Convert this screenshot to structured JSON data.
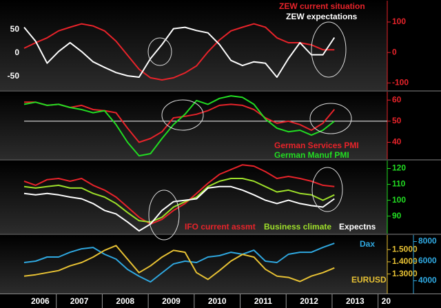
{
  "chart_data": [
    {
      "type": "line",
      "xlim": [
        2006.3,
        2014.2
      ],
      "ylim": [
        -80,
        112
      ],
      "yticks": [
        50,
        0,
        -50
      ],
      "y_axis_side": "left",
      "y_color": "#ffffff",
      "y2lim": [
        -124,
        170
      ],
      "y2ticks": [
        100,
        0,
        -100
      ],
      "y2_color": "#e8232a",
      "x": [
        2006.3,
        2006.55,
        2006.8,
        2007.05,
        2007.3,
        2007.55,
        2007.8,
        2008.05,
        2008.3,
        2008.55,
        2008.8,
        2009.05,
        2009.3,
        2009.55,
        2009.8,
        2010.05,
        2010.3,
        2010.55,
        2010.8,
        2011.05,
        2011.3,
        2011.55,
        2011.8,
        2012.05,
        2012.3,
        2012.55,
        2012.8,
        2013.05
      ],
      "series": [
        {
          "name": "ZEW current situation",
          "color": "#e8232a",
          "axis": "y2",
          "values": [
            14,
            32,
            48,
            71,
            83,
            94,
            87,
            71,
            37,
            -9,
            -55,
            -83,
            -90,
            -83,
            -67,
            -44,
            2,
            41,
            71,
            83,
            94,
            83,
            48,
            32,
            32,
            25,
            9,
            9
          ]
        },
        {
          "name": "ZEW expectations",
          "color": "#ffffff",
          "values": [
            55,
            25,
            -22,
            3,
            22,
            3,
            -19,
            -31,
            -42,
            -49,
            -52,
            -12,
            18,
            52,
            55,
            48,
            43,
            18,
            -16,
            -27,
            -19,
            -22,
            -52,
            -12,
            22,
            -4,
            -4,
            33
          ]
        }
      ]
    },
    {
      "type": "line",
      "xlim": [
        2006.3,
        2014.2
      ],
      "ylim": [
        32,
        64
      ],
      "yticks": [
        60,
        50,
        40
      ],
      "y_axis_side": "right",
      "y_color": "#e8232a",
      "reference_line": 50,
      "x": [
        2006.3,
        2006.55,
        2006.8,
        2007.05,
        2007.3,
        2007.55,
        2007.8,
        2008.05,
        2008.3,
        2008.55,
        2008.8,
        2009.05,
        2009.3,
        2009.55,
        2009.8,
        2010.05,
        2010.3,
        2010.55,
        2010.8,
        2011.05,
        2011.3,
        2011.55,
        2011.8,
        2012.05,
        2012.3,
        2012.55,
        2012.8,
        2013.05
      ],
      "series": [
        {
          "name": "German Services PMI",
          "color": "#e8232a",
          "values": [
            59,
            59,
            57.5,
            58,
            56.5,
            57.5,
            55.5,
            55,
            54,
            46.7,
            40,
            41.8,
            45,
            51.6,
            52.3,
            53.3,
            55,
            57.5,
            58,
            57.5,
            55.5,
            51.6,
            49,
            50,
            48.4,
            45.7,
            49,
            55.6
          ]
        },
        {
          "name": "German Manuf PMI",
          "color": "#22dd22",
          "values": [
            58,
            59,
            57.5,
            58,
            56.5,
            55.5,
            54,
            55,
            48.4,
            40,
            33.6,
            34.6,
            41.8,
            48.4,
            53.3,
            59.8,
            58,
            60.8,
            62,
            61.3,
            58,
            51,
            46.7,
            45,
            45.7,
            43.4,
            45.7,
            50
          ]
        }
      ]
    },
    {
      "type": "line",
      "xlim": [
        2006.3,
        2014.2
      ],
      "ylim": [
        79,
        125
      ],
      "yticks": [
        120,
        110,
        100,
        90
      ],
      "y_axis_side": "right",
      "y_color": "#22dd22",
      "x": [
        2006.3,
        2006.55,
        2006.8,
        2007.05,
        2007.3,
        2007.55,
        2007.8,
        2008.05,
        2008.3,
        2008.55,
        2008.8,
        2009.05,
        2009.3,
        2009.55,
        2009.8,
        2010.05,
        2010.3,
        2010.55,
        2010.8,
        2011.05,
        2011.3,
        2011.55,
        2011.8,
        2012.05,
        2012.3,
        2012.55,
        2012.8,
        2013.05
      ],
      "series": [
        {
          "name": "IFO current assmt",
          "color": "#e8232a",
          "values": [
            112,
            109.4,
            113,
            113.7,
            112,
            113.7,
            109.4,
            106.4,
            102,
            95.7,
            89.3,
            85,
            88,
            93.6,
            97.9,
            104.3,
            110.7,
            116.3,
            119.3,
            122.3,
            121.5,
            118,
            113.7,
            115,
            113.7,
            112,
            109.4,
            108.6
          ]
        },
        {
          "name": "Business climate",
          "color": "#9ee02a",
          "values": [
            108.6,
            107.7,
            108.6,
            109.4,
            107.7,
            107.7,
            104.3,
            102,
            97.9,
            92.3,
            87.1,
            86.3,
            89.3,
            95.7,
            99.1,
            102,
            108.6,
            112,
            113.7,
            113.7,
            112,
            108.6,
            105.2,
            106.4,
            104.3,
            103.4,
            100,
            103.4
          ]
        },
        {
          "name": "Expectns",
          "color": "#ffffff",
          "values": [
            104.3,
            103.4,
            104.3,
            103.4,
            102,
            100.9,
            97.9,
            93.6,
            91.4,
            86.3,
            80.7,
            85,
            93.6,
            99.1,
            100,
            100.9,
            107.7,
            108.6,
            108.6,
            106.4,
            103.4,
            100,
            97.9,
            100,
            97.9,
            96.6,
            95.7,
            100.9
          ]
        }
      ]
    },
    {
      "type": "line",
      "xlim": [
        2006.3,
        2014.2
      ],
      "ylim": [
        1.14,
        1.62
      ],
      "yticks": [
        {
          "value": 1.5,
          "label": "1.5000"
        },
        {
          "value": 1.4,
          "label": "1.4000"
        },
        {
          "value": 1.3,
          "label": "1.3000"
        }
      ],
      "y_axis_side": "right",
      "y_color": "#e8c234",
      "y2lim": [
        2700,
        8670
      ],
      "y2ticks": [
        8000,
        6000,
        4000
      ],
      "y2_color": "#2fa8e0",
      "xticks": [
        2006,
        2007,
        2008,
        2009,
        2010,
        2011,
        2012,
        2013,
        {
          "value": 2014,
          "label": "20"
        }
      ],
      "x": [
        2006.3,
        2006.55,
        2006.8,
        2007.05,
        2007.3,
        2007.55,
        2007.8,
        2008.05,
        2008.3,
        2008.55,
        2008.8,
        2009.05,
        2009.3,
        2009.55,
        2009.8,
        2010.05,
        2010.3,
        2010.55,
        2010.8,
        2011.05,
        2011.3,
        2011.55,
        2011.8,
        2012.05,
        2012.3,
        2012.55,
        2012.8,
        2013.05
      ],
      "series": [
        {
          "name": "Dax",
          "color": "#2fa8e0",
          "axis": "y2",
          "values": [
            5860,
            6000,
            6420,
            6420,
            6910,
            7260,
            7400,
            6700,
            6210,
            5160,
            4460,
            3890,
            4810,
            5720,
            6000,
            5860,
            6420,
            6560,
            6910,
            6700,
            7120,
            6000,
            5860,
            6700,
            6910,
            6910,
            7400,
            7820
          ]
        },
        {
          "name": "EURUSD",
          "color": "#e8c234",
          "values": [
            1.283,
            1.294,
            1.311,
            1.328,
            1.367,
            1.394,
            1.439,
            1.494,
            1.533,
            1.422,
            1.311,
            1.367,
            1.439,
            1.494,
            1.478,
            1.311,
            1.256,
            1.328,
            1.406,
            1.461,
            1.439,
            1.339,
            1.283,
            1.272,
            1.239,
            1.283,
            1.311,
            1.35
          ]
        }
      ]
    }
  ]
}
